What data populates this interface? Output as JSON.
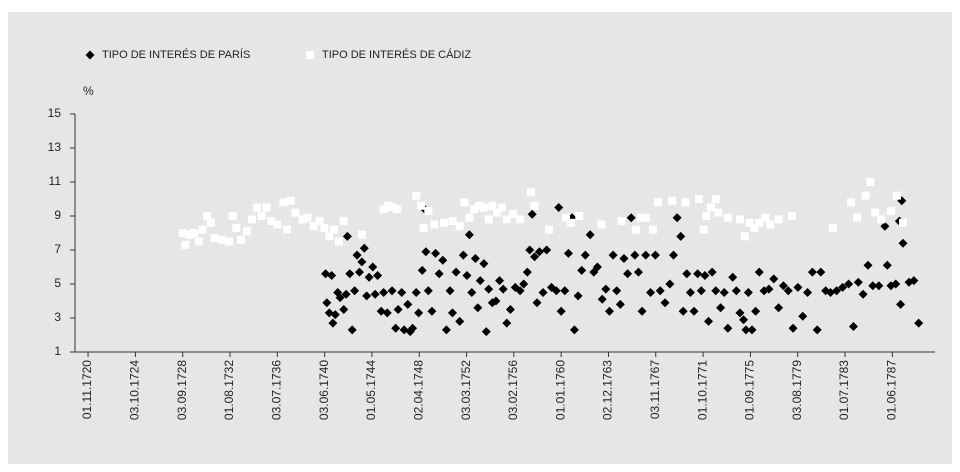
{
  "chart_data": {
    "type": "scatter",
    "y_label": "%",
    "legend": "top",
    "xlim": [
      1719.75,
      1790.95
    ],
    "ylim": [
      1,
      15
    ],
    "yticks": [
      1,
      3,
      5,
      7,
      9,
      11,
      13,
      15
    ],
    "xticks": [
      {
        "value": 1720.83,
        "label": "01.11.1720"
      },
      {
        "value": 1724.75,
        "label": "03.10.1724"
      },
      {
        "value": 1728.67,
        "label": "03.09.1728"
      },
      {
        "value": 1732.58,
        "label": "01.08.1732"
      },
      {
        "value": 1736.5,
        "label": "03.07.1736"
      },
      {
        "value": 1740.42,
        "label": "03.06.1740"
      },
      {
        "value": 1744.33,
        "label": "01.05.1744"
      },
      {
        "value": 1748.25,
        "label": "02.04.1748"
      },
      {
        "value": 1752.17,
        "label": "03.03.1752"
      },
      {
        "value": 1756.08,
        "label": "03.02.1756"
      },
      {
        "value": 1760.0,
        "label": "01.01.1760"
      },
      {
        "value": 1763.92,
        "label": "02.12.1763"
      },
      {
        "value": 1767.83,
        "label": "03.11.1767"
      },
      {
        "value": 1771.75,
        "label": "01.10.1771"
      },
      {
        "value": 1775.67,
        "label": "01.09.1775"
      },
      {
        "value": 1779.58,
        "label": "03.08.1779"
      },
      {
        "value": 1783.5,
        "label": "01.07.1783"
      },
      {
        "value": 1787.42,
        "label": "01.06.1787"
      }
    ],
    "series": [
      {
        "name": "TIPO DE INTERÉS DE PARÍS",
        "color": "#000000",
        "marker": "diamond",
        "x": [
          1740.5,
          1740.6,
          1740.8,
          1741.0,
          1741.1,
          1741.3,
          1741.5,
          1741.7,
          1742.0,
          1742.2,
          1742.3,
          1742.5,
          1742.7,
          1742.9,
          1743.1,
          1743.3,
          1743.5,
          1743.7,
          1743.9,
          1744.1,
          1744.4,
          1744.6,
          1744.8,
          1745.1,
          1745.3,
          1745.6,
          1746.0,
          1746.3,
          1746.5,
          1746.8,
          1747.0,
          1747.3,
          1747.5,
          1747.7,
          1748.0,
          1748.2,
          1748.5,
          1748.7,
          1748.8,
          1749.0,
          1749.3,
          1749.6,
          1749.9,
          1750.2,
          1750.5,
          1750.8,
          1751.0,
          1751.3,
          1751.6,
          1751.9,
          1752.2,
          1752.4,
          1752.6,
          1752.9,
          1753.1,
          1753.3,
          1753.6,
          1753.8,
          1754.0,
          1754.3,
          1754.6,
          1754.9,
          1755.2,
          1755.5,
          1755.8,
          1756.2,
          1756.6,
          1756.9,
          1757.2,
          1757.4,
          1757.6,
          1757.8,
          1758.0,
          1758.2,
          1758.5,
          1758.8,
          1759.2,
          1759.6,
          1759.8,
          1760.0,
          1760.3,
          1760.6,
          1760.9,
          1761.1,
          1761.4,
          1761.7,
          1762.0,
          1762.4,
          1762.7,
          1763.0,
          1763.4,
          1763.7,
          1764.0,
          1764.3,
          1764.6,
          1764.9,
          1765.2,
          1765.5,
          1765.8,
          1766.1,
          1766.4,
          1766.7,
          1767.0,
          1767.4,
          1767.8,
          1768.2,
          1768.6,
          1769.0,
          1769.3,
          1769.6,
          1769.9,
          1770.1,
          1770.4,
          1770.7,
          1771.0,
          1771.3,
          1771.6,
          1771.9,
          1772.2,
          1772.5,
          1772.8,
          1773.2,
          1773.5,
          1773.8,
          1774.2,
          1774.5,
          1774.8,
          1775.1,
          1775.3,
          1775.5,
          1775.8,
          1776.1,
          1776.4,
          1776.8,
          1777.2,
          1777.6,
          1778.0,
          1778.4,
          1778.8,
          1779.2,
          1779.6,
          1780.0,
          1780.4,
          1780.8,
          1781.2,
          1781.5,
          1781.9,
          1782.3,
          1782.8,
          1783.3,
          1783.8,
          1784.2,
          1784.6,
          1785.0,
          1785.4,
          1785.8,
          1786.3,
          1786.8,
          1787.0,
          1787.3,
          1787.7,
          1788.0,
          1788.2,
          1788.3,
          1788.1,
          1788.8,
          1789.2,
          1789.6
        ],
        "values": [
          5.6,
          3.9,
          3.3,
          5.5,
          2.7,
          3.2,
          4.5,
          4.2,
          3.5,
          4.4,
          7.8,
          5.6,
          2.3,
          4.6,
          6.7,
          5.7,
          6.3,
          7.1,
          4.3,
          5.4,
          6.0,
          4.4,
          5.5,
          3.4,
          4.5,
          3.3,
          4.6,
          2.4,
          3.5,
          4.5,
          2.3,
          3.8,
          2.2,
          2.4,
          4.5,
          3.3,
          5.8,
          9.4,
          6.9,
          4.6,
          3.4,
          6.8,
          5.6,
          6.4,
          2.3,
          4.6,
          3.3,
          5.7,
          2.8,
          6.7,
          5.5,
          7.9,
          4.5,
          6.5,
          3.6,
          5.2,
          6.2,
          2.2,
          4.7,
          3.9,
          4.0,
          5.2,
          4.7,
          2.7,
          3.5,
          4.8,
          4.6,
          5.0,
          5.7,
          7.0,
          9.1,
          6.6,
          3.9,
          6.9,
          4.5,
          7.0,
          4.8,
          4.6,
          9.5,
          3.4,
          4.6,
          6.8,
          8.9,
          2.3,
          4.3,
          5.8,
          6.7,
          7.9,
          5.7,
          6.0,
          4.1,
          4.7,
          3.4,
          6.7,
          4.6,
          3.8,
          6.5,
          5.6,
          8.9,
          6.7,
          5.7,
          3.4,
          6.7,
          4.5,
          6.7,
          4.6,
          3.9,
          5.0,
          6.7,
          8.9,
          7.8,
          3.4,
          5.6,
          4.5,
          3.4,
          5.6,
          4.6,
          5.5,
          2.8,
          5.7,
          4.6,
          3.6,
          4.5,
          2.4,
          5.4,
          4.6,
          3.3,
          2.9,
          2.3,
          4.5,
          2.3,
          3.4,
          5.7,
          4.6,
          4.7,
          5.3,
          3.6,
          4.9,
          4.6,
          2.4,
          4.8,
          3.1,
          4.5,
          5.7,
          2.3,
          5.7,
          4.6,
          4.5,
          4.6,
          4.8,
          5.0,
          2.5,
          5.1,
          4.4,
          6.1,
          4.9,
          4.9,
          8.4,
          6.1,
          4.9,
          5.0,
          8.7,
          9.9,
          7.4,
          3.8,
          5.1,
          5.2,
          2.7
        ]
      },
      {
        "name": "TIPO DE INTERÉS DE CÁDIZ",
        "color": "#ffffff",
        "marker": "square",
        "x": [
          1728.7,
          1728.9,
          1729.2,
          1729.6,
          1730.0,
          1730.3,
          1730.7,
          1731.0,
          1731.3,
          1731.9,
          1732.5,
          1732.8,
          1733.1,
          1733.5,
          1734.0,
          1734.4,
          1734.8,
          1735.2,
          1735.6,
          1736.0,
          1736.5,
          1737.0,
          1737.3,
          1737.6,
          1738.0,
          1738.6,
          1739.0,
          1739.5,
          1740.0,
          1740.4,
          1740.8,
          1741.2,
          1741.6,
          1742.0,
          1743.5,
          1745.3,
          1745.7,
          1746.0,
          1746.4,
          1748.0,
          1748.4,
          1748.6,
          1749.0,
          1749.5,
          1750.3,
          1751.0,
          1751.6,
          1752.0,
          1752.4,
          1752.8,
          1753.2,
          1753.6,
          1754.0,
          1754.3,
          1754.7,
          1755.1,
          1755.5,
          1756.0,
          1756.6,
          1757.5,
          1757.8,
          1759.0,
          1760.4,
          1760.8,
          1761.5,
          1763.3,
          1765.0,
          1766.2,
          1766.6,
          1767.0,
          1767.6,
          1768.0,
          1769.2,
          1770.3,
          1771.4,
          1771.8,
          1772.0,
          1772.4,
          1772.8,
          1773.0,
          1773.8,
          1774.8,
          1775.2,
          1775.6,
          1776.0,
          1776.4,
          1776.9,
          1777.3,
          1778.0,
          1779.1,
          1782.5,
          1784.0,
          1784.5,
          1785.2,
          1785.6,
          1786.0,
          1786.5,
          1787.3,
          1787.8,
          1788.3
        ],
        "values": [
          8.0,
          7.3,
          7.9,
          8.0,
          7.5,
          8.2,
          9.0,
          8.6,
          7.7,
          7.6,
          7.5,
          9.0,
          8.3,
          7.6,
          8.1,
          8.8,
          9.5,
          9.0,
          9.5,
          8.7,
          8.5,
          9.8,
          8.2,
          9.9,
          9.2,
          8.8,
          8.9,
          8.4,
          8.7,
          8.3,
          7.8,
          8.2,
          7.5,
          8.7,
          7.9,
          9.4,
          9.6,
          9.5,
          9.4,
          10.2,
          9.6,
          8.3,
          9.3,
          8.5,
          8.6,
          8.7,
          8.4,
          9.8,
          8.9,
          9.4,
          9.6,
          9.5,
          8.8,
          9.6,
          9.2,
          9.5,
          8.8,
          9.1,
          8.8,
          10.4,
          9.6,
          8.2,
          8.9,
          8.6,
          9.0,
          8.5,
          8.7,
          8.2,
          8.9,
          8.9,
          8.2,
          9.8,
          9.9,
          9.8,
          10.0,
          8.2,
          9.0,
          9.5,
          10.0,
          9.2,
          8.9,
          8.8,
          7.8,
          8.6,
          8.3,
          8.6,
          8.9,
          8.5,
          8.8,
          9.0,
          8.3,
          9.8,
          8.9,
          10.2,
          11.0,
          9.2,
          8.8,
          9.3,
          10.2,
          8.6
        ]
      }
    ]
  }
}
